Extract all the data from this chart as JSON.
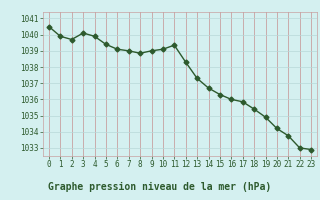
{
  "x": [
    0,
    1,
    2,
    3,
    4,
    5,
    6,
    7,
    8,
    9,
    10,
    11,
    12,
    13,
    14,
    15,
    16,
    17,
    18,
    19,
    20,
    21,
    22,
    23
  ],
  "y": [
    1040.5,
    1039.9,
    1039.7,
    1040.1,
    1039.9,
    1039.4,
    1039.1,
    1039.0,
    1038.85,
    1039.0,
    1039.1,
    1039.35,
    1038.3,
    1037.3,
    1036.7,
    1036.3,
    1036.0,
    1035.85,
    1035.4,
    1034.9,
    1034.2,
    1033.75,
    1033.0,
    1032.9
  ],
  "line_color": "#2d5a2d",
  "marker": "D",
  "markersize": 2.5,
  "linewidth": 1.0,
  "bg_color": "#d4f0f0",
  "grid_color_major": "#c8a0a0",
  "grid_color_minor": "#b8d8d8",
  "xlabel": "Graphe pression niveau de la mer (hPa)",
  "xlabel_fontsize": 7.0,
  "ylabel_ticks": [
    1033,
    1034,
    1035,
    1036,
    1037,
    1038,
    1039,
    1040,
    1041
  ],
  "xtick_labels": [
    "0",
    "1",
    "2",
    "3",
    "4",
    "5",
    "6",
    "7",
    "8",
    "9",
    "10",
    "11",
    "12",
    "13",
    "14",
    "15",
    "16",
    "17",
    "18",
    "19",
    "20",
    "21",
    "22",
    "23"
  ],
  "ylim": [
    1032.5,
    1041.4
  ],
  "xlim": [
    -0.5,
    23.5
  ],
  "tick_fontsize": 5.5,
  "tick_color": "#2d5a2d",
  "label_color": "#2d5a2d"
}
